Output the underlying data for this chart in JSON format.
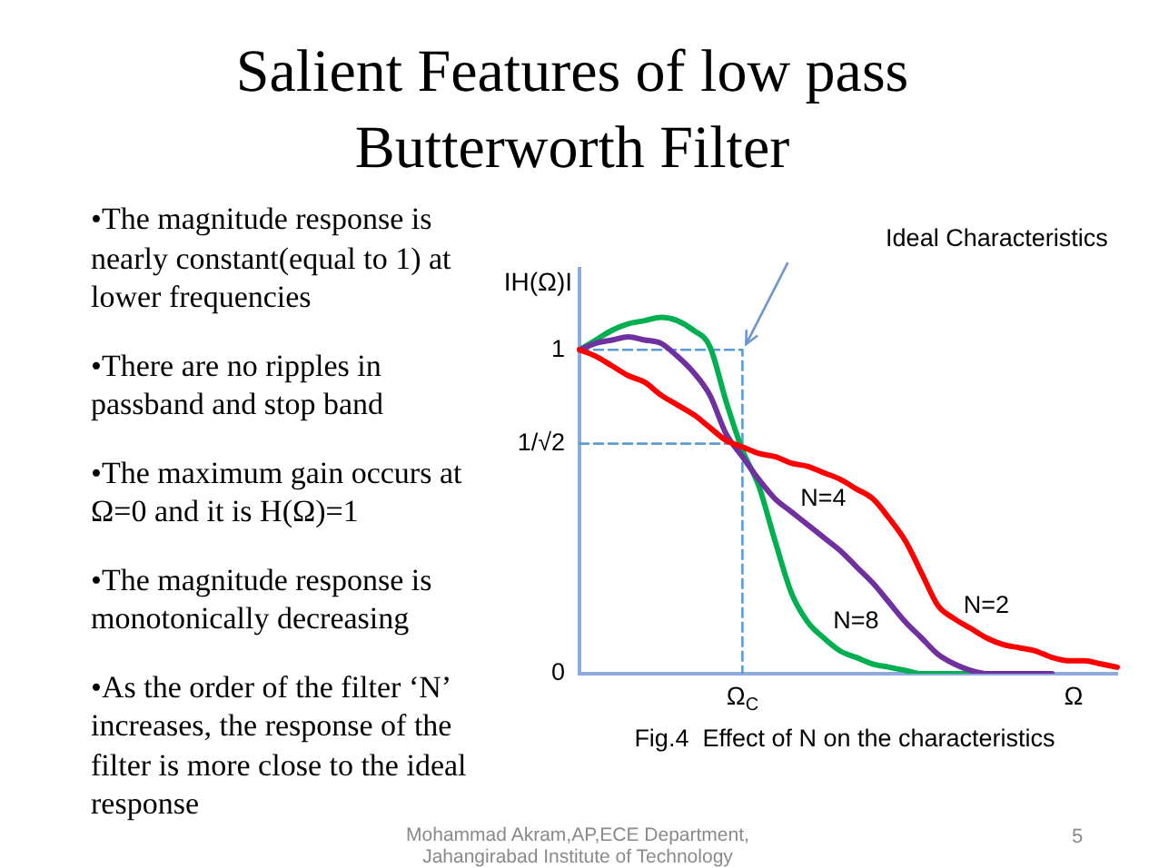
{
  "chart_data": {
    "type": "line",
    "title": "Salient Features of low pass Butterworth Filter",
    "xlabel": "Ω",
    "ylabel": "IH(Ω)I",
    "categories": [
      null,
      null,
      null,
      null,
      null,
      null,
      null,
      null,
      null,
      null,
      "Ω$_{C}$",
      null,
      null,
      null,
      null,
      null,
      null,
      null,
      null,
      null,
      null,
      null,
      null,
      null,
      null,
      null,
      null,
      null,
      null,
      null,
      null,
      null,
      null,
      null
    ],
    "ylim": [
      0,
      1.25
    ],
    "yticks": [
      0,
      {
        "value": 0.71,
        "label": "1/√2"
      },
      1
    ],
    "grid": false,
    "legend": false,
    "marker": "none",
    "line_style": "solid",
    "series": [
      {
        "name": "N=2",
        "color": "#ff0000",
        "values": [
          1,
          0.98,
          0.95,
          0.92,
          0.9,
          0.86,
          0.83,
          0.8,
          0.76,
          0.72,
          0.7,
          0.68,
          0.67,
          0.65,
          0.64,
          0.62,
          0.6,
          0.57,
          0.54,
          0.48,
          0.41,
          0.31,
          0.21,
          0.17,
          0.14,
          0.11,
          0.09,
          0.08,
          0.07,
          0.05,
          0.04,
          0.04,
          0.03,
          0.02
        ]
      },
      {
        "name": "N=4",
        "color": "#7030a0",
        "values": [
          1,
          1.02,
          1.03,
          1.04,
          1.03,
          1.02,
          0.98,
          0.93,
          0.86,
          0.74,
          0.67,
          0.6,
          0.54,
          0.5,
          0.46,
          0.42,
          0.38,
          0.33,
          0.28,
          0.22,
          0.16,
          0.11,
          0.06,
          0.03,
          0.01,
          0,
          0,
          0,
          0,
          0,
          null,
          null,
          null,
          null
        ]
      },
      {
        "name": "N=8",
        "color": "#00b050",
        "values": [
          1,
          1.03,
          1.06,
          1.08,
          1.09,
          1.1,
          1.09,
          1.06,
          1.01,
          0.84,
          0.69,
          0.58,
          0.41,
          0.25,
          0.16,
          0.11,
          0.07,
          0.05,
          0.03,
          0.02,
          0.01,
          0,
          0,
          0,
          0,
          0,
          0,
          null,
          null,
          null,
          null,
          null,
          null,
          null
        ]
      },
      {
        "type": "step",
        "color": "#5b9bd5",
        "line_style": "dashed",
        "values": [
          1,
          1,
          1,
          1,
          1,
          1,
          1,
          1,
          1,
          1,
          0,
          null,
          null,
          null,
          null,
          null,
          null,
          null,
          null,
          null,
          null,
          null,
          null,
          null,
          null,
          null,
          null,
          null,
          null,
          null,
          null,
          null,
          null,
          null
        ]
      },
      {
        "color": "#5b9bd5",
        "line_style": "dashed",
        "values": [
          0.71,
          0.71,
          0.71,
          0.71,
          0.71,
          0.71,
          0.71,
          0.71,
          0.71,
          0.71,
          0.71,
          null,
          null,
          null,
          null,
          null,
          null,
          null,
          null,
          null,
          null,
          null,
          null,
          null,
          null,
          null,
          null,
          null,
          null,
          null,
          null,
          null,
          null,
          null
        ]
      }
    ],
    "annotations": [
      "Ideal Characteristics",
      "Fig.4  Effect of N on the characteristics",
      "•The magnitude response is nearly constant(equal to 1) at lower frequencies",
      "•There are no ripples in passband and stop band",
      "•The maximum gain occurs at Ω=0 and it is H(Ω)=1",
      "•The magnitude response is monotonically decreasing",
      "•As the order of the filter ‘N’ increases, the response of the filter is more close to the ideal response",
      "Mohammad Akram,AP,ECE Department, Jahangirabad Institute of Technology",
      "5"
    ]
  }
}
